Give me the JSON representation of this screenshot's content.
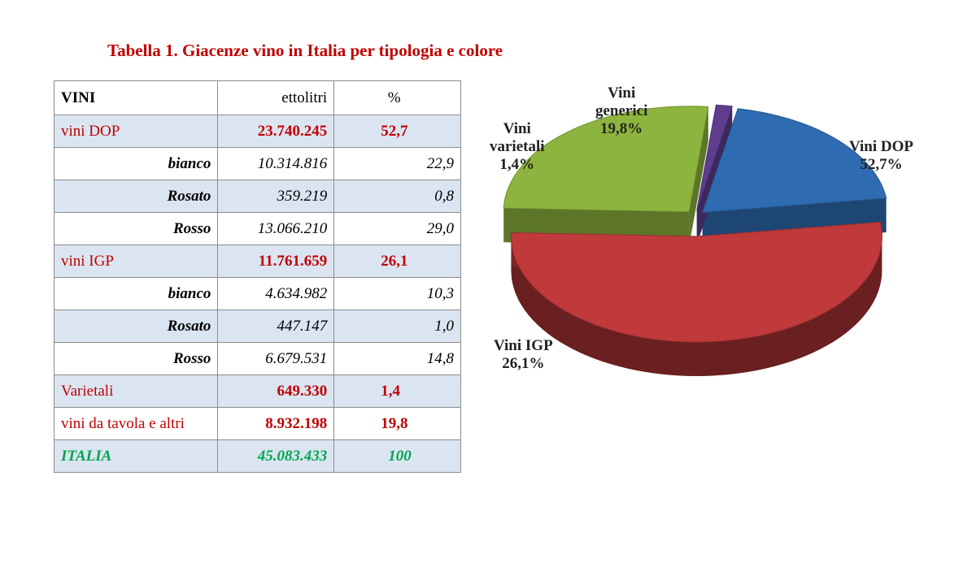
{
  "title": "Tabella 1. Giacenze vino in Italia per tipologia e colore",
  "table": {
    "headers": [
      "VINI",
      "ettolitri",
      "%"
    ],
    "rows": [
      {
        "name": "vini DOP",
        "value": "23.740.245",
        "pct": "52,7"
      },
      {
        "name": "bianco",
        "value": "10.314.816",
        "pct": "22,9"
      },
      {
        "name": "Rosato",
        "value": "359.219",
        "pct": "0,8"
      },
      {
        "name": "Rosso",
        "value": "13.066.210",
        "pct": "29,0"
      },
      {
        "name": "vini IGP",
        "value": "11.761.659",
        "pct": "26,1"
      },
      {
        "name": "bianco",
        "value": "4.634.982",
        "pct": "10,3"
      },
      {
        "name": "Rosato",
        "value": "447.147",
        "pct": "1,0"
      },
      {
        "name": "Rosso",
        "value": "6.679.531",
        "pct": "14,8"
      },
      {
        "name": "Varietali",
        "value": "649.330",
        "pct": "1,4"
      },
      {
        "name": "vini da tavola e altri",
        "value": "8.932.198",
        "pct": "19,8"
      },
      {
        "name": "ITALIA",
        "value": "45.083.433",
        "pct": "100"
      }
    ]
  },
  "chart_data": {
    "type": "pie",
    "three_d": true,
    "slices": [
      {
        "label_line1": "Vini",
        "label_line2": "generici",
        "pct_label": "19,8%",
        "value": 19.8,
        "color": "#2e6bb0"
      },
      {
        "label_line1": "Vini DOP",
        "label_line2": "",
        "pct_label": "52,7%",
        "value": 52.7,
        "color": "#c0393b"
      },
      {
        "label_line1": "Vini IGP",
        "label_line2": "",
        "pct_label": "26,1%",
        "value": 26.1,
        "color": "#8db43e"
      },
      {
        "label_line1": "Vini",
        "label_line2": "varietali",
        "pct_label": "1,4%",
        "value": 1.4,
        "color": "#5e3d8f"
      }
    ]
  }
}
